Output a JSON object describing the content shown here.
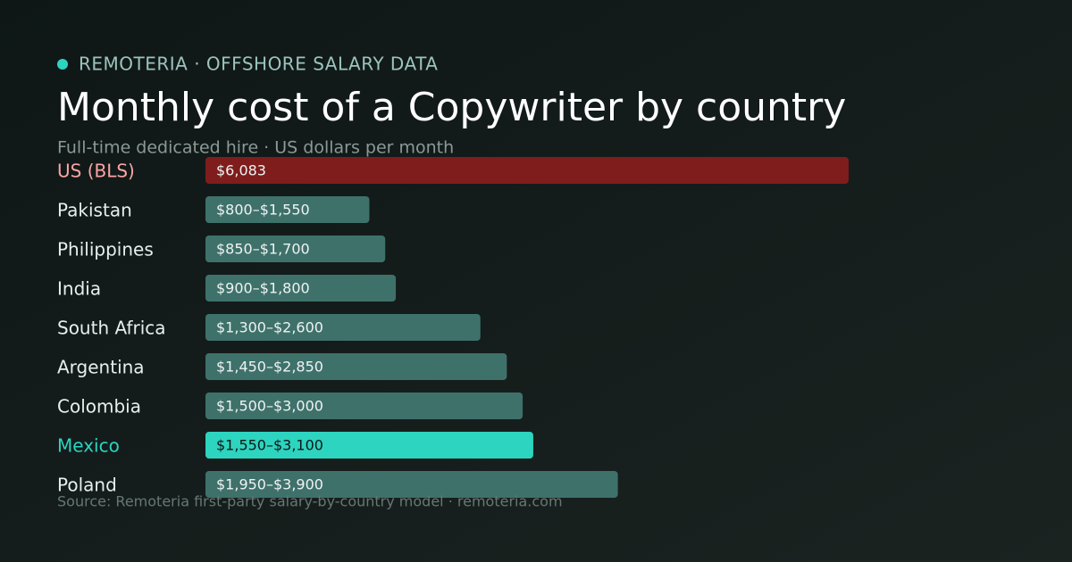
{
  "chart_data": {
    "type": "bar",
    "orientation": "horizontal",
    "eyebrow": "REMOTERIA · OFFSHORE SALARY DATA",
    "title": "Monthly cost of a Copywriter by country",
    "subtitle": "Full-time dedicated hire · US dollars per month",
    "source": "Source: Remoteria first-party salary-by-country model · remoteria.com",
    "categories": [
      "US (BLS)",
      "Pakistan",
      "Philippines",
      "India",
      "South Africa",
      "Argentina",
      "Colombia",
      "Mexico",
      "Poland"
    ],
    "lows": [
      null,
      800,
      850,
      900,
      1300,
      1450,
      1500,
      1550,
      1950
    ],
    "values": [
      6083,
      1550,
      1700,
      1800,
      2600,
      2850,
      3000,
      3100,
      3900
    ],
    "value_labels": [
      "$6,083",
      "$800–$1,550",
      "$850–$1,700",
      "$900–$1,800",
      "$1,300–$2,600",
      "$1,450–$2,850",
      "$1,500–$3,000",
      "$1,550–$3,100",
      "$1,950–$3,900"
    ],
    "colors": [
      "#7f1d1d",
      "#3f716b",
      "#3f716b",
      "#3f716b",
      "#3f716b",
      "#3f716b",
      "#3f716b",
      "#2dd4bf",
      "#3f716b"
    ],
    "label_colors": [
      "#fca5a5",
      "#e8eeec",
      "#e8eeec",
      "#e8eeec",
      "#e8eeec",
      "#e8eeec",
      "#e8eeec",
      "#2dd4bf",
      "#e8eeec"
    ],
    "xlim": [
      0,
      6083
    ]
  }
}
